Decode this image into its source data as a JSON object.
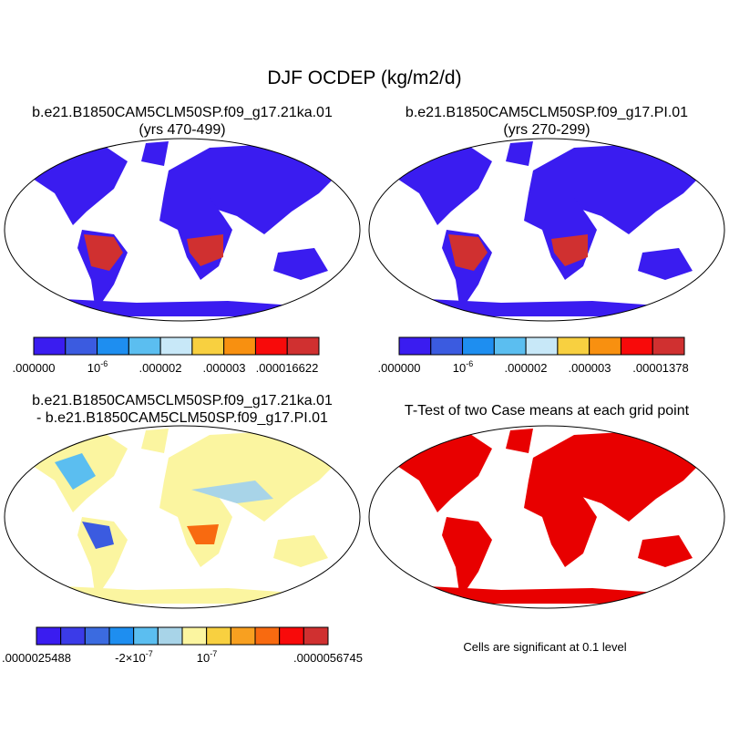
{
  "title": "DJF OCDEP (kg/m2/d)",
  "panels": [
    {
      "title": "b.e21.B1850CAM5CLM50SP.f09_g17.21ka.01",
      "subtitle": "(yrs 470-499)",
      "colorbar": {
        "colors": [
          "#3a1cf0",
          "#3b5be0",
          "#1e8ef0",
          "#5bbef0",
          "#c8e8f8",
          "#f8d040",
          "#f89010",
          "#f80a0a",
          "#d03030"
        ],
        "labels": [
          {
            "text": ".000000"
          },
          {
            "text": "10",
            "sup": "-6"
          },
          {
            "text": ".000002"
          },
          {
            "text": ".000003"
          },
          {
            "text": ".000016622"
          }
        ]
      }
    },
    {
      "title": "b.e21.B1850CAM5CLM50SP.f09_g17.PI.01",
      "subtitle": "(yrs 270-299)",
      "colorbar": {
        "colors": [
          "#3a1cf0",
          "#3b5be0",
          "#1e8ef0",
          "#5bbef0",
          "#c8e8f8",
          "#f8d040",
          "#f89010",
          "#f80a0a",
          "#d03030"
        ],
        "labels": [
          {
            "text": ".000000"
          },
          {
            "text": "10",
            "sup": "-6"
          },
          {
            "text": ".000002"
          },
          {
            "text": ".000003"
          },
          {
            "text": ".00001378"
          }
        ]
      }
    },
    {
      "title": "b.e21.B1850CAM5CLM50SP.f09_g17.21ka.01",
      "subtitle": "- b.e21.B1850CAM5CLM50SP.f09_g17.PI.01",
      "colorbar": {
        "colors": [
          "#3a1cf0",
          "#3b3be8",
          "#3b6be0",
          "#1e8ef0",
          "#5bbef0",
          "#a8d4e8",
          "#fbf5a0",
          "#f8d040",
          "#f8a020",
          "#f86a10",
          "#f80a0a",
          "#d03030"
        ],
        "labels": [
          {
            "text": ".0000025488"
          },
          {
            "text": "-2×10",
            "sup": "-7"
          },
          {
            "text": "10",
            "sup": "-7"
          },
          {
            "text": ".0000056745"
          }
        ]
      }
    },
    {
      "title": "T-Test of two Case means at each grid point",
      "note": "Cells are significant at 0.1 level"
    }
  ]
}
